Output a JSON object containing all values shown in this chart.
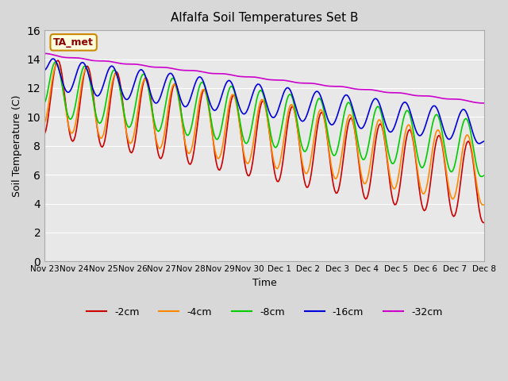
{
  "title": "Alfalfa Soil Temperatures Set B",
  "xlabel": "Time",
  "ylabel": "Soil Temperature (C)",
  "ylim": [
    0,
    16
  ],
  "yticks": [
    0,
    2,
    4,
    6,
    8,
    10,
    12,
    14,
    16
  ],
  "bg_color": "#e8e8e8",
  "plot_bg": "#f0f0f0",
  "legend_label": "TA_met",
  "series_colors": {
    "-2cm": "#cc0000",
    "-4cm": "#ff8800",
    "-8cm": "#00cc00",
    "-16cm": "#0000dd",
    "-32cm": "#cc00cc"
  },
  "x_labels": [
    "Nov 23",
    "Nov 24",
    "Nov 25",
    "Nov 26",
    "Nov 27",
    "Nov 28",
    "Nov 29",
    "Nov 30",
    "Dec 1",
    "Dec 2",
    "Dec 3",
    "Dec 4",
    "Dec 5",
    "Dec 6",
    "Dec 7",
    "Dec 8"
  ],
  "x_positions": [
    0,
    1,
    2,
    3,
    4,
    5,
    6,
    7,
    8,
    9,
    10,
    11,
    12,
    13,
    14,
    15
  ]
}
